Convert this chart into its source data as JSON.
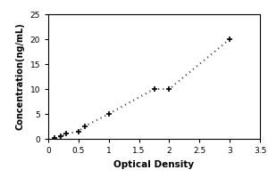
{
  "x_data": [
    0.1,
    0.2,
    0.3,
    0.5,
    0.6,
    1.0,
    1.75,
    2.0,
    3.0
  ],
  "y_data": [
    0.1,
    0.5,
    1.0,
    1.5,
    2.5,
    5.0,
    10.0,
    10.0,
    20.0
  ],
  "xlabel": "Optical Density",
  "ylabel": "Concentration(ng/mL)",
  "xlim": [
    0,
    3.5
  ],
  "ylim": [
    0,
    25
  ],
  "xticks": [
    0,
    0.5,
    1.0,
    1.5,
    2.0,
    2.5,
    3.0,
    3.5
  ],
  "yticks": [
    0,
    5,
    10,
    15,
    20,
    25
  ],
  "xtick_labels": [
    "0",
    "0.5",
    "1",
    "1.5",
    "2",
    "2.5",
    "3",
    "3.5"
  ],
  "ytick_labels": [
    "0",
    "5",
    "10",
    "15",
    "20",
    "25"
  ],
  "line_color": "#333333",
  "marker_color": "#000000",
  "plot_bg": "#ffffff",
  "fig_bg": "#ffffff"
}
